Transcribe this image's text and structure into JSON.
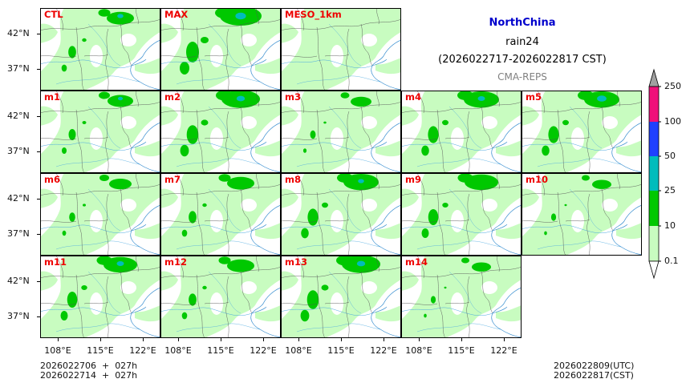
{
  "header": {
    "region": "NorthChina",
    "variable": "rain24",
    "period": "(2026022717-2026022817 CST)",
    "system": "CMA-REPS",
    "region_color": "#0000cc",
    "system_color": "#808080"
  },
  "axes": {
    "lat_labels": [
      "42°N",
      "37°N"
    ],
    "lon_labels": [
      "108°E",
      "115°E",
      "122°E"
    ]
  },
  "panels": [
    {
      "label": "CTL",
      "heavy": 0.55,
      "peak": 0.4
    },
    {
      "label": "MAX",
      "heavy": 1.0,
      "peak": 0.8
    },
    {
      "label": "MESO_1km",
      "heavy": 0.0,
      "peak": 0.0
    },
    {
      "label": "m1",
      "heavy": 0.5,
      "peak": 0.3
    },
    {
      "label": "m2",
      "heavy": 0.9,
      "peak": 0.6
    },
    {
      "label": "m3",
      "heavy": 0.35,
      "peak": 0.0
    },
    {
      "label": "m4",
      "heavy": 0.8,
      "peak": 0.5
    },
    {
      "label": "m5",
      "heavy": 0.8,
      "peak": 0.7
    },
    {
      "label": "m6",
      "heavy": 0.4,
      "peak": 0.0
    },
    {
      "label": "m7",
      "heavy": 0.55,
      "peak": 0.0
    },
    {
      "label": "m8",
      "heavy": 0.8,
      "peak": 0.4
    },
    {
      "label": "m9",
      "heavy": 0.75,
      "peak": 0.0
    },
    {
      "label": "m10",
      "heavy": 0.3,
      "peak": 0.0
    },
    {
      "label": "m11",
      "heavy": 0.75,
      "peak": 0.5
    },
    {
      "label": "m12",
      "heavy": 0.55,
      "peak": 0.0
    },
    {
      "label": "m13",
      "heavy": 0.9,
      "peak": 0.6
    },
    {
      "label": "m14",
      "heavy": 0.3,
      "peak": 0.0
    }
  ],
  "colorbar": {
    "ticks": [
      "0.1",
      "10",
      "25",
      "50",
      "100",
      "250"
    ],
    "colors": [
      "#c8fcc0",
      "#00c800",
      "#00bcbc",
      "#2040ff",
      "#f0107a"
    ],
    "under_color": "#ffffff",
    "over_color": "#a0a0a0"
  },
  "footer": {
    "init_line1": "2026022706  +  027h",
    "init_line2": "2026022714  +  027h",
    "valid_utc": "2026022809(UTC)",
    "valid_cst": "2026022817(CST)"
  }
}
